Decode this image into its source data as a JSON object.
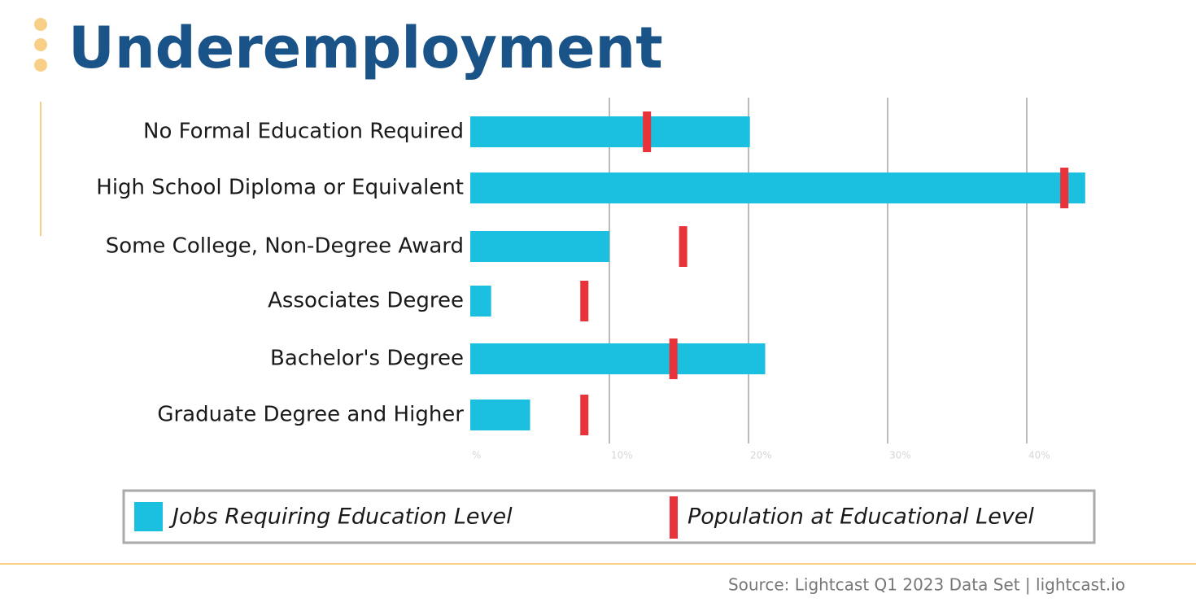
{
  "chart_data": {
    "type": "bar",
    "title": "Underemployment",
    "categories": [
      "No Formal Education Required",
      "High School Diploma or Equivalent",
      "Some College, Non-Degree Award",
      "Associates Degree",
      "Bachelor's Degree",
      "Graduate Degree and Higher"
    ],
    "series": [
      {
        "name": "Jobs Requiring Education Level",
        "color": "#1bbfe0",
        "values": [
          20.1,
          44.2,
          10.0,
          1.5,
          21.2,
          4.3
        ]
      },
      {
        "name": "Population at Educational Level",
        "color": "#e8333a",
        "type": "marker",
        "values": [
          12.7,
          42.7,
          15.3,
          8.2,
          14.6,
          8.2
        ]
      }
    ],
    "xlim": [
      0,
      45
    ],
    "xticks": [
      {
        "value": 0,
        "label": "%"
      },
      {
        "value": 10,
        "label": "10%"
      },
      {
        "value": 20,
        "label": "20%"
      },
      {
        "value": 30,
        "label": "30%"
      },
      {
        "value": 40,
        "label": "40%"
      }
    ],
    "grid": true,
    "source": "Source: Lightcast Q1 2023 Data Set | lightcast.io"
  }
}
